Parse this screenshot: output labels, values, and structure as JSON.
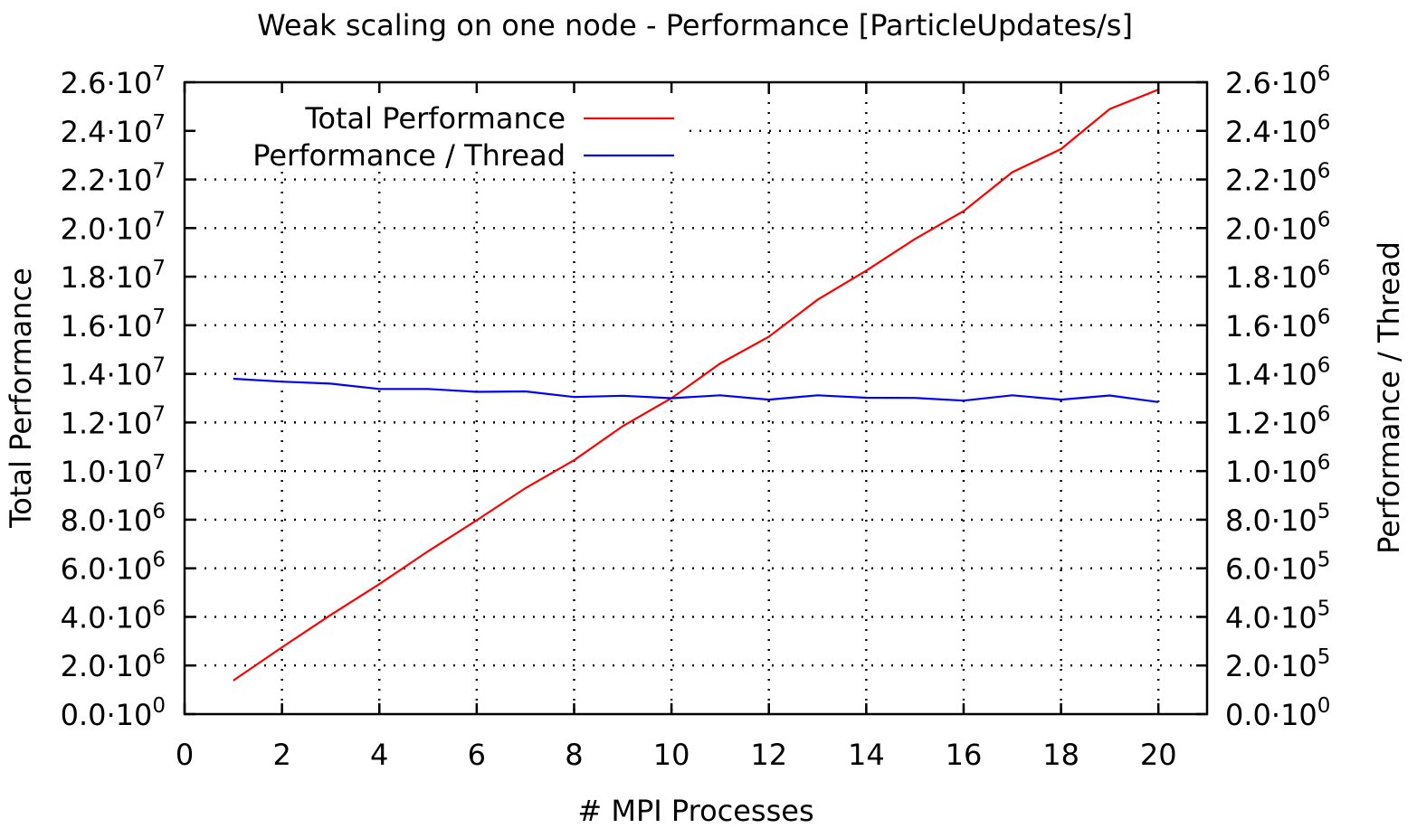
{
  "chart_data": {
    "type": "line",
    "title": "Weak scaling on one node - Performance [ParticleUpdates/s]",
    "xlabel": "# MPI Processes",
    "ylabel_left": "Total Performance",
    "ylabel_right": "Performance / Thread",
    "xlim": [
      0,
      21
    ],
    "ylim_left": [
      0,
      26000000
    ],
    "ylim_right": [
      0,
      2600000
    ],
    "x_ticks": [
      "0",
      "2",
      "4",
      "6",
      "8",
      "10",
      "12",
      "14",
      "16",
      "18",
      "20"
    ],
    "y_ticks_left": [
      {
        "m": "0.0",
        "e": "0"
      },
      {
        "m": "2.0",
        "e": "6"
      },
      {
        "m": "4.0",
        "e": "6"
      },
      {
        "m": "6.0",
        "e": "6"
      },
      {
        "m": "8.0",
        "e": "6"
      },
      {
        "m": "1.0",
        "e": "7"
      },
      {
        "m": "1.2",
        "e": "7"
      },
      {
        "m": "1.4",
        "e": "7"
      },
      {
        "m": "1.6",
        "e": "7"
      },
      {
        "m": "1.8",
        "e": "7"
      },
      {
        "m": "2.0",
        "e": "7"
      },
      {
        "m": "2.2",
        "e": "7"
      },
      {
        "m": "2.4",
        "e": "7"
      },
      {
        "m": "2.6",
        "e": "7"
      }
    ],
    "y_ticks_right": [
      {
        "m": "0.0",
        "e": "0"
      },
      {
        "m": "2.0",
        "e": "5"
      },
      {
        "m": "4.0",
        "e": "5"
      },
      {
        "m": "6.0",
        "e": "5"
      },
      {
        "m": "8.0",
        "e": "5"
      },
      {
        "m": "1.0",
        "e": "6"
      },
      {
        "m": "1.2",
        "e": "6"
      },
      {
        "m": "1.4",
        "e": "6"
      },
      {
        "m": "1.6",
        "e": "6"
      },
      {
        "m": "1.8",
        "e": "6"
      },
      {
        "m": "2.0",
        "e": "6"
      },
      {
        "m": "2.2",
        "e": "6"
      },
      {
        "m": "2.4",
        "e": "6"
      },
      {
        "m": "2.6",
        "e": "6"
      }
    ],
    "grid": true,
    "legend_position": "top-left",
    "x": [
      1,
      2,
      3,
      4,
      5,
      6,
      7,
      8,
      9,
      10,
      11,
      12,
      13,
      14,
      15,
      16,
      17,
      18,
      19,
      20
    ],
    "series": [
      {
        "name": "Total Performance",
        "axis": "left",
        "color": "#ff0000",
        "values": [
          1380000,
          2750000,
          4080000,
          5350000,
          6700000,
          7980000,
          9300000,
          10450000,
          11850000,
          13000000,
          14430000,
          15530000,
          17050000,
          18250000,
          19550000,
          20700000,
          22300000,
          23250000,
          24900000,
          25700000
        ]
      },
      {
        "name": "Performance / Thread",
        "axis": "right",
        "color": "#0000ff",
        "values": [
          1380000,
          1368000,
          1360000,
          1338000,
          1338000,
          1326000,
          1328000,
          1305000,
          1310000,
          1300000,
          1312000,
          1294000,
          1312000,
          1302000,
          1301000,
          1290000,
          1312000,
          1294000,
          1311000,
          1284000
        ]
      }
    ]
  }
}
